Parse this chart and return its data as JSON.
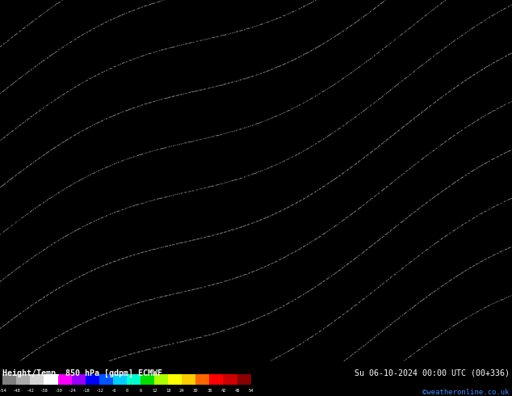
{
  "title_left": "Height/Temp. 850 hPa [gdpm] ECMWF",
  "title_right": "Su 06-10-2024 00:00 UTC (00+336)",
  "credit": "©weatheronline.co.uk",
  "colorbar_labels": [
    "-54",
    "-48",
    "-42",
    "-38",
    "-30",
    "-24",
    "-18",
    "-12",
    "-6",
    "0",
    "6",
    "12",
    "18",
    "24",
    "30",
    "36",
    "42",
    "48",
    "54"
  ],
  "colorbar_colors": [
    "#7f7f7f",
    "#aaaaaa",
    "#d4d4d4",
    "#ffffff",
    "#ff00ff",
    "#9900ff",
    "#0000ff",
    "#0055ff",
    "#00ccff",
    "#00ffcc",
    "#00dd00",
    "#aaff00",
    "#ffff00",
    "#ffcc00",
    "#ff6600",
    "#ff0000",
    "#cc0000",
    "#880000"
  ],
  "bg_color": "#f5b800",
  "bottom_bar_bg": "#000000",
  "figure_width": 6.34,
  "figure_height": 4.9,
  "dpi": 100,
  "rows": 58,
  "cols": 130,
  "digit_fontsize": 5.5,
  "contour_color": "#aaaaaa",
  "number_color": "#000000"
}
